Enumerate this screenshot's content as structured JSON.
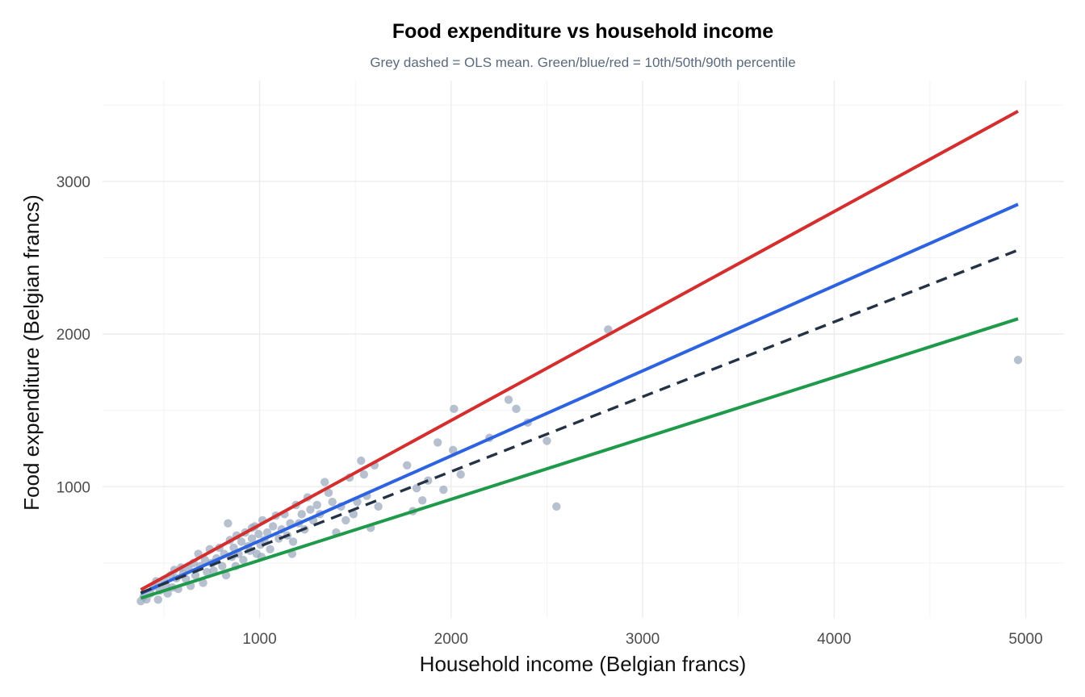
{
  "chart_data": {
    "type": "scatter",
    "title": "Food expenditure vs household income",
    "subtitle": "Grey dashed = OLS mean. Green/blue/red = 10th/50th/90th percentile",
    "xlabel": "Household income (Belgian francs)",
    "ylabel": "Food expenditure (Belgian francs)",
    "xlim": [
      180,
      5200
    ],
    "ylim": [
      140,
      3660
    ],
    "x_ticks": [
      1000,
      2000,
      3000,
      4000,
      5000
    ],
    "y_ticks": [
      1000,
      2000,
      3000
    ],
    "x_tick_labels": [
      "1000",
      "2000",
      "3000",
      "4000",
      "5000"
    ],
    "y_tick_labels": [
      "1000",
      "2000",
      "3000"
    ],
    "grid": true,
    "colors": {
      "points": "#9aa7bc",
      "ols": "#243245",
      "q10": "#1e9a4a",
      "q50": "#2d63e0",
      "q90": "#d42e2e"
    },
    "lines": [
      {
        "id": "q90",
        "style": "solid",
        "x": [
          380,
          4960
        ],
        "y": [
          325,
          3460
        ]
      },
      {
        "id": "q50",
        "style": "solid",
        "x": [
          380,
          4960
        ],
        "y": [
          300,
          2850
        ]
      },
      {
        "id": "ols",
        "style": "dashed",
        "x": [
          380,
          4960
        ],
        "y": [
          305,
          2550
        ]
      },
      {
        "id": "q10",
        "style": "solid",
        "x": [
          380,
          4960
        ],
        "y": [
          270,
          2100
        ]
      }
    ],
    "points": [
      [
        380,
        250
      ],
      [
        395,
        280
      ],
      [
        410,
        262
      ],
      [
        430,
        300
      ],
      [
        445,
        345
      ],
      [
        460,
        380
      ],
      [
        470,
        260
      ],
      [
        480,
        320
      ],
      [
        500,
        390
      ],
      [
        510,
        355
      ],
      [
        520,
        300
      ],
      [
        535,
        420
      ],
      [
        545,
        340
      ],
      [
        555,
        455
      ],
      [
        565,
        400
      ],
      [
        575,
        330
      ],
      [
        590,
        470
      ],
      [
        600,
        430
      ],
      [
        615,
        395
      ],
      [
        630,
        460
      ],
      [
        640,
        350
      ],
      [
        655,
        500
      ],
      [
        665,
        420
      ],
      [
        680,
        560
      ],
      [
        690,
        480
      ],
      [
        705,
        370
      ],
      [
        715,
        520
      ],
      [
        725,
        440
      ],
      [
        740,
        590
      ],
      [
        750,
        500
      ],
      [
        760,
        450
      ],
      [
        775,
        530
      ],
      [
        790,
        600
      ],
      [
        805,
        480
      ],
      [
        815,
        560
      ],
      [
        825,
        420
      ],
      [
        835,
        760
      ],
      [
        845,
        650
      ],
      [
        855,
        540
      ],
      [
        865,
        600
      ],
      [
        880,
        680
      ],
      [
        890,
        560
      ],
      [
        905,
        640
      ],
      [
        915,
        520
      ],
      [
        925,
        700
      ],
      [
        940,
        610
      ],
      [
        950,
        580
      ],
      [
        960,
        660
      ],
      [
        975,
        740
      ],
      [
        985,
        560
      ],
      [
        995,
        690
      ],
      [
        1005,
        620
      ],
      [
        1015,
        780
      ],
      [
        1025,
        650
      ],
      [
        1040,
        700
      ],
      [
        1055,
        590
      ],
      [
        1070,
        740
      ],
      [
        1085,
        810
      ],
      [
        1100,
        660
      ],
      [
        1115,
        720
      ],
      [
        1130,
        820
      ],
      [
        1145,
        680
      ],
      [
        1160,
        760
      ],
      [
        1175,
        640
      ],
      [
        1190,
        880
      ],
      [
        1205,
        760
      ],
      [
        1220,
        820
      ],
      [
        1235,
        720
      ],
      [
        1250,
        930
      ],
      [
        1265,
        850
      ],
      [
        1280,
        780
      ],
      [
        1300,
        880
      ],
      [
        1315,
        820
      ],
      [
        1340,
        1030
      ],
      [
        1360,
        960
      ],
      [
        1380,
        900
      ],
      [
        1400,
        700
      ],
      [
        1425,
        870
      ],
      [
        1450,
        780
      ],
      [
        1470,
        1060
      ],
      [
        1490,
        820
      ],
      [
        1510,
        900
      ],
      [
        1530,
        1170
      ],
      [
        1545,
        1080
      ],
      [
        1560,
        940
      ],
      [
        1580,
        730
      ],
      [
        1600,
        1140
      ],
      [
        1620,
        870
      ],
      [
        1770,
        1140
      ],
      [
        1800,
        840
      ],
      [
        1820,
        990
      ],
      [
        1850,
        910
      ],
      [
        1880,
        1040
      ],
      [
        1930,
        1290
      ],
      [
        1960,
        980
      ],
      [
        2010,
        1240
      ],
      [
        2015,
        1510
      ],
      [
        2050,
        1080
      ],
      [
        2200,
        1320
      ],
      [
        2300,
        1570
      ],
      [
        2340,
        1510
      ],
      [
        2400,
        1420
      ],
      [
        2500,
        1300
      ],
      [
        2550,
        870
      ],
      [
        2820,
        2030
      ],
      [
        4960,
        1830
      ],
      [
        1010,
        540
      ],
      [
        1170,
        560
      ],
      [
        875,
        480
      ],
      [
        960,
        730
      ]
    ]
  }
}
